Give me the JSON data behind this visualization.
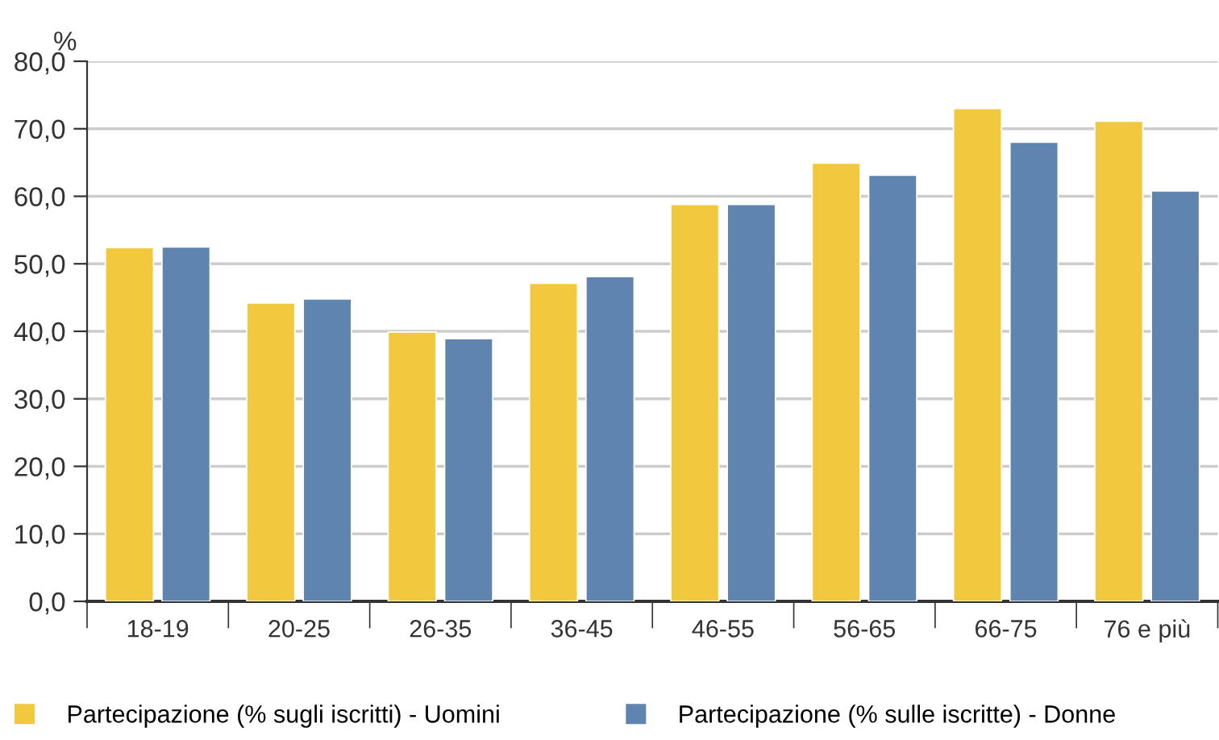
{
  "chart_data": {
    "type": "bar",
    "ylabel": "%",
    "categories": [
      "18-19",
      "20-25",
      "26-35",
      "36-45",
      "46-55",
      "56-65",
      "66-75",
      "76 e più"
    ],
    "series": [
      {
        "name": "Partecipazione (% sugli iscritti) - Uomini",
        "color": "#f2c83f",
        "values": [
          52.4,
          44.2,
          39.9,
          47.1,
          58.8,
          64.9,
          73.0,
          71.1
        ]
      },
      {
        "name": "Partecipazione (% sulle iscritte) - Donne",
        "color": "#5f84b0",
        "values": [
          52.5,
          44.8,
          38.9,
          48.1,
          58.8,
          63.1,
          68.0,
          60.8
        ]
      }
    ],
    "ylim": [
      0,
      80
    ],
    "yticks": [
      {
        "value": 0,
        "label": "0,0"
      },
      {
        "value": 10,
        "label": "10,0"
      },
      {
        "value": 20,
        "label": "20,0"
      },
      {
        "value": 30,
        "label": "30,0"
      },
      {
        "value": 40,
        "label": "40,0"
      },
      {
        "value": 50,
        "label": "50,0"
      },
      {
        "value": 60,
        "label": "60,0"
      },
      {
        "value": 70,
        "label": "70,0"
      },
      {
        "value": 80,
        "label": "80,0"
      }
    ],
    "grid": "y",
    "legend": "bottom left"
  }
}
